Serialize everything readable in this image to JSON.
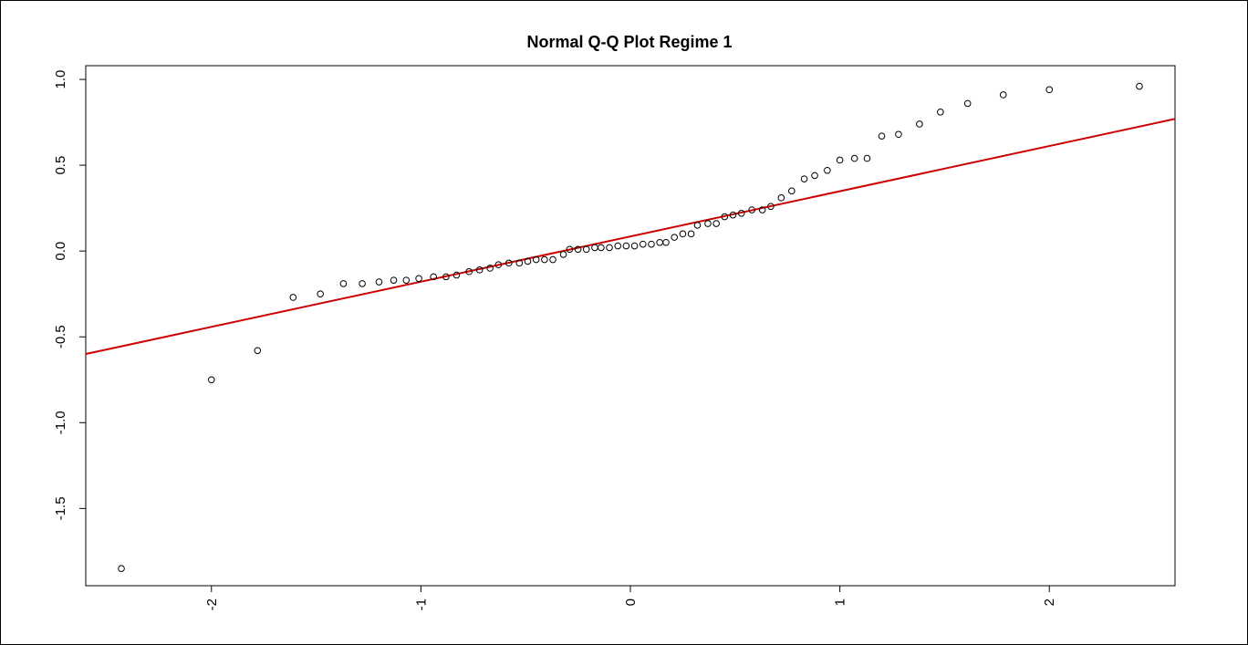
{
  "chart_data": {
    "type": "scatter",
    "title": "Normal Q-Q Plot Regime 1",
    "xlabel": "",
    "ylabel": "",
    "xlim": [
      -2.6,
      2.6
    ],
    "ylim": [
      -1.95,
      1.08
    ],
    "x_ticks": [
      -2,
      -1,
      0,
      1,
      2
    ],
    "x_tick_labels": [
      "-2",
      "-1",
      "0",
      "1",
      "2"
    ],
    "y_ticks": [
      -1.5,
      -1.0,
      -0.5,
      0.0,
      0.5,
      1.0
    ],
    "y_tick_labels": [
      "-1.5",
      "-1.0",
      "-0.5",
      "0.0",
      "0.5",
      "1.0"
    ],
    "grid": false,
    "legend": "none",
    "point_color": "#000000",
    "line_color": "#cc0000",
    "reference_line": {
      "x": [
        -2.6,
        2.6
      ],
      "y": [
        -0.6,
        0.77
      ]
    },
    "points": [
      [
        -2.43,
        -1.85
      ],
      [
        -2.0,
        -0.75
      ],
      [
        -1.78,
        -0.58
      ],
      [
        -1.61,
        -0.27
      ],
      [
        -1.48,
        -0.25
      ],
      [
        -1.37,
        -0.19
      ],
      [
        -1.28,
        -0.19
      ],
      [
        -1.2,
        -0.18
      ],
      [
        -1.13,
        -0.17
      ],
      [
        -1.07,
        -0.17
      ],
      [
        -1.01,
        -0.16
      ],
      [
        -0.94,
        -0.15
      ],
      [
        -0.88,
        -0.15
      ],
      [
        -0.83,
        -0.14
      ],
      [
        -0.77,
        -0.12
      ],
      [
        -0.72,
        -0.11
      ],
      [
        -0.67,
        -0.1
      ],
      [
        -0.63,
        -0.08
      ],
      [
        -0.58,
        -0.07
      ],
      [
        -0.53,
        -0.07
      ],
      [
        -0.49,
        -0.06
      ],
      [
        -0.45,
        -0.05
      ],
      [
        -0.41,
        -0.05
      ],
      [
        -0.37,
        -0.05
      ],
      [
        -0.32,
        -0.02
      ],
      [
        -0.29,
        0.01
      ],
      [
        -0.25,
        0.01
      ],
      [
        -0.21,
        0.01
      ],
      [
        -0.17,
        0.02
      ],
      [
        -0.14,
        0.02
      ],
      [
        -0.1,
        0.02
      ],
      [
        -0.06,
        0.03
      ],
      [
        -0.02,
        0.03
      ],
      [
        0.02,
        0.03
      ],
      [
        0.06,
        0.04
      ],
      [
        0.1,
        0.04
      ],
      [
        0.14,
        0.05
      ],
      [
        0.17,
        0.05
      ],
      [
        0.21,
        0.08
      ],
      [
        0.25,
        0.1
      ],
      [
        0.29,
        0.1
      ],
      [
        0.32,
        0.15
      ],
      [
        0.37,
        0.16
      ],
      [
        0.41,
        0.16
      ],
      [
        0.45,
        0.2
      ],
      [
        0.49,
        0.21
      ],
      [
        0.53,
        0.22
      ],
      [
        0.58,
        0.24
      ],
      [
        0.63,
        0.24
      ],
      [
        0.67,
        0.26
      ],
      [
        0.72,
        0.31
      ],
      [
        0.77,
        0.35
      ],
      [
        0.83,
        0.42
      ],
      [
        0.88,
        0.44
      ],
      [
        0.94,
        0.47
      ],
      [
        1.0,
        0.53
      ],
      [
        1.07,
        0.54
      ],
      [
        1.13,
        0.54
      ],
      [
        1.2,
        0.67
      ],
      [
        1.28,
        0.68
      ],
      [
        1.38,
        0.74
      ],
      [
        1.48,
        0.81
      ],
      [
        1.61,
        0.86
      ],
      [
        1.78,
        0.91
      ],
      [
        2.0,
        0.94
      ],
      [
        2.43,
        0.96
      ]
    ]
  }
}
